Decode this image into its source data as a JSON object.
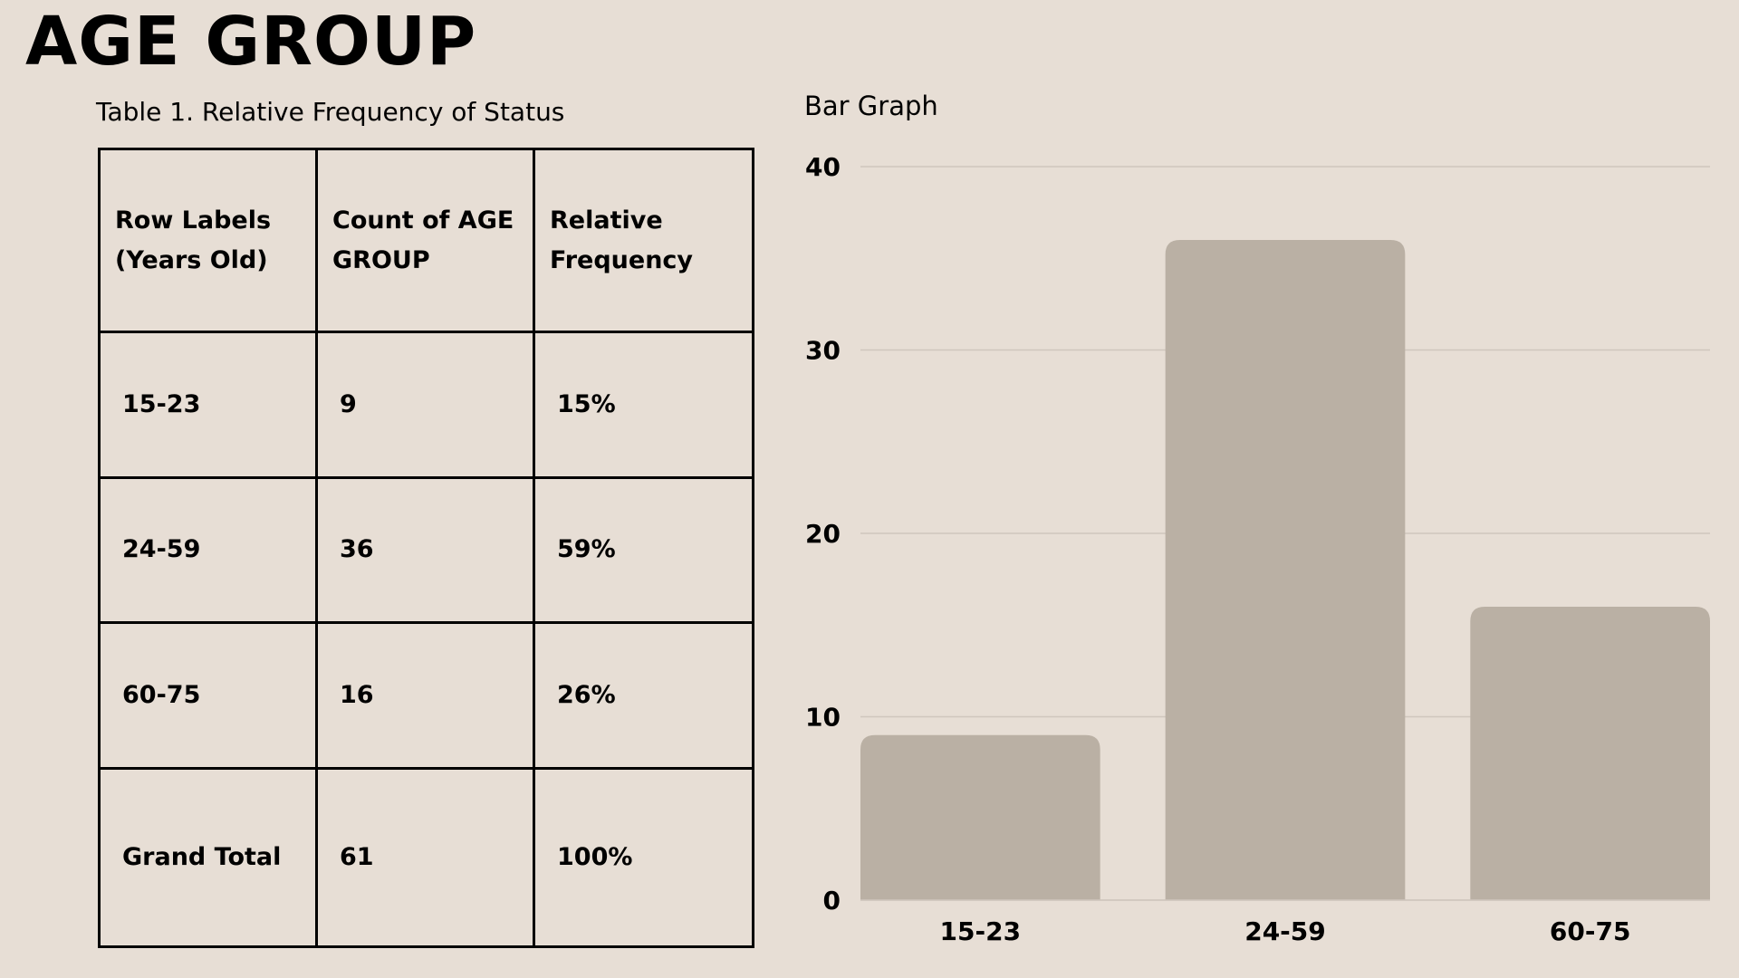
{
  "page": {
    "title": "AGE GROUP"
  },
  "table": {
    "caption": "Table 1. Relative Frequency of Status",
    "headers": [
      "Row Labels (Years Old)",
      "Count of AGE GROUP",
      "Relative Frequency"
    ],
    "rows": [
      [
        "15-23",
        "9",
        "15%"
      ],
      [
        "24-59",
        "36",
        "59%"
      ],
      [
        "60-75",
        "16",
        "26%"
      ]
    ],
    "total": [
      "Grand Total",
      "61",
      "100%"
    ]
  },
  "chart_label": "Bar Graph",
  "chart_data": {
    "type": "bar",
    "title": "",
    "xlabel": "",
    "ylabel": "",
    "categories": [
      "15-23",
      "24-59",
      "60-75"
    ],
    "values": [
      9,
      36,
      16
    ],
    "ylim": [
      0,
      40
    ],
    "yticks": [
      0,
      10,
      20,
      30,
      40
    ],
    "grid": true,
    "bar_color": "#bab0a4",
    "grid_color": "#cfc6bd"
  },
  "colors": {
    "background": "#e7ded5",
    "text": "#000000",
    "bar": "#bab0a4"
  }
}
